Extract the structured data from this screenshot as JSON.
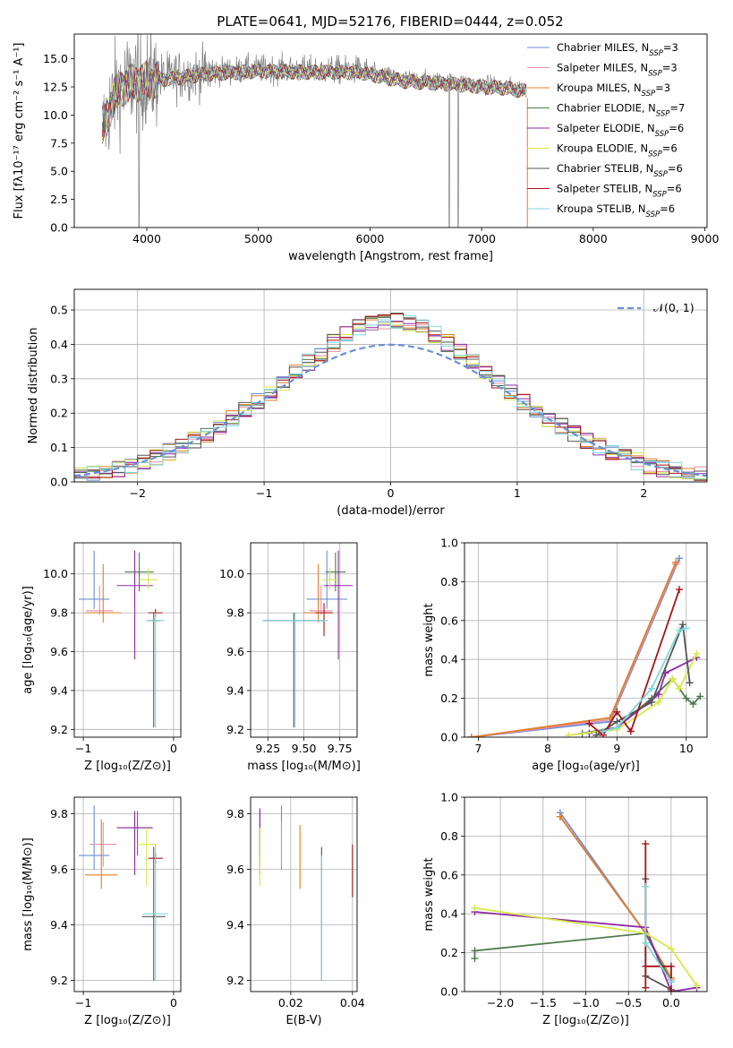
{
  "figure_title": "PLATE=0641, MJD=52176, FIBERID=0444, z=0.052",
  "colors": {
    "chabrier_miles": "#6b8fd6",
    "salpeter_miles": "#e58ea8",
    "kroupa_miles": "#e07f28",
    "chabrier_elodie": "#4e7a4e",
    "salpeter_elodie": "#8e2aa6",
    "kroupa_elodie": "#d8e84a",
    "chabrier_stelib": "#555555",
    "salpeter_stelib": "#a5141a",
    "kroupa_stelib": "#7fd6dc",
    "gauss": "#6b8fd6",
    "grid": "#b0b0b0",
    "data": "#7f7f7f"
  },
  "legend_spectrum": [
    {
      "name": "Chabrier MILES, N",
      "sub": "SSP",
      "suffix": "=3",
      "color": "#6b8fd6"
    },
    {
      "name": "Salpeter MILES, N",
      "sub": "SSP",
      "suffix": "=3",
      "color": "#e58ea8"
    },
    {
      "name": "Kroupa MILES, N",
      "sub": "SSP",
      "suffix": "=3",
      "color": "#e07f28"
    },
    {
      "name": "Chabrier ELODIE, N",
      "sub": "SSP",
      "suffix": "=7",
      "color": "#4e7a4e"
    },
    {
      "name": "Salpeter ELODIE, N",
      "sub": "SSP",
      "suffix": "=6",
      "color": "#8e2aa6"
    },
    {
      "name": "Kroupa ELODIE, N",
      "sub": "SSP",
      "suffix": "=6",
      "color": "#d8e84a"
    },
    {
      "name": "Chabrier STELIB, N",
      "sub": "SSP",
      "suffix": "=6",
      "color": "#555555"
    },
    {
      "name": "Salpeter STELIB, N",
      "sub": "SSP",
      "suffix": "=6",
      "color": "#a5141a"
    },
    {
      "name": "Kroupa STELIB, N",
      "sub": "SSP",
      "suffix": "=6",
      "color": "#7fd6dc"
    }
  ],
  "chart_data": [
    {
      "id": "spectrum",
      "type": "line",
      "xlabel": "wavelength [Angstrom, rest frame]",
      "ylabel": "Flux [fλ10⁻¹⁷ erg cm⁻² s⁻¹ A⁻¹]",
      "xlim": [
        3350,
        9020
      ],
      "ylim": [
        0,
        17.2
      ],
      "xticks": [
        4000,
        5000,
        6000,
        7000,
        8000,
        9000
      ],
      "yticks": [
        0.0,
        2.5,
        5.0,
        7.5,
        10.0,
        12.5,
        15.0
      ],
      "continuum": [
        [
          3600,
          8.6
        ],
        [
          3700,
          11.8
        ],
        [
          3800,
          12.8
        ],
        [
          3900,
          13.1
        ],
        [
          4000,
          13.2
        ],
        [
          4200,
          13.4
        ],
        [
          4500,
          13.8
        ],
        [
          5000,
          14.1
        ],
        [
          5500,
          14.0
        ],
        [
          5900,
          14.0
        ],
        [
          6300,
          13.2
        ],
        [
          6800,
          12.9
        ],
        [
          7000,
          12.7
        ],
        [
          7200,
          12.6
        ],
        [
          7400,
          12.3
        ]
      ],
      "model_end": 7400,
      "dips": [
        [
          3930,
          0
        ],
        [
          6710,
          0
        ],
        [
          6790,
          0
        ]
      ],
      "drop_line": {
        "x": 7410,
        "ymin": 0,
        "ymax": 11.5
      }
    },
    {
      "id": "residuals",
      "type": "histogram",
      "xlabel": "(data-model)/error",
      "ylabel": "Normed distribution",
      "xlim": [
        -2.5,
        2.5
      ],
      "ylim": [
        0,
        0.56
      ],
      "xticks": [
        -2,
        -1,
        0,
        1,
        2
      ],
      "yticks": [
        0.0,
        0.1,
        0.2,
        0.3,
        0.4,
        0.5
      ],
      "bin_width": 0.1,
      "gauss_label": "𝒩(0, 1)",
      "gauss": {
        "mu": 0,
        "sigma": 1
      }
    },
    {
      "id": "age_vs_Z",
      "type": "errorbar",
      "xlabel": "Z [log₁₀(Z/Z⊙)]",
      "ylabel": "age  [log₁₀(age/yr)]",
      "xlim": [
        -1.1,
        0.08
      ],
      "ylim": [
        9.16,
        10.16
      ],
      "xticks": [
        -1,
        0
      ],
      "yticks": [
        9.2,
        9.4,
        9.6,
        9.8,
        10.0
      ],
      "points": [
        {
          "color": "#6b8fd6",
          "x": -0.88,
          "xerr": 0.17,
          "y": 9.87,
          "yerr": [
            0.05,
            0.25
          ]
        },
        {
          "color": "#e58ea8",
          "x": -0.82,
          "xerr": 0.15,
          "y": 9.81,
          "yerr": [
            0.02,
            0.13
          ]
        },
        {
          "color": "#e07f28",
          "x": -0.78,
          "xerr": 0.2,
          "y": 9.8,
          "yerr": [
            0.05,
            0.25
          ]
        },
        {
          "color": "#4e7a4e",
          "x": -0.38,
          "xerr": 0.16,
          "y": 10.01,
          "yerr": [
            0.1,
            0.1
          ]
        },
        {
          "color": "#8e2aa6",
          "x": -0.43,
          "xerr": 0.2,
          "y": 9.94,
          "yerr": [
            0.38,
            0.18
          ]
        },
        {
          "color": "#d8e84a",
          "x": -0.28,
          "xerr": 0.1,
          "y": 9.97,
          "yerr": [
            0.05,
            0.06
          ]
        },
        {
          "color": "#555555",
          "x": -0.22,
          "xerr": 0.07,
          "y": 9.76,
          "yerr": [
            0.55,
            0.04
          ]
        },
        {
          "color": "#a5141a",
          "x": -0.2,
          "xerr": 0.08,
          "y": 9.8,
          "yerr": [
            0.02,
            0.02
          ]
        },
        {
          "color": "#7fd6dc",
          "x": -0.2,
          "xerr": 0.1,
          "y": 9.76,
          "yerr": [
            0.55,
            0.04
          ]
        }
      ]
    },
    {
      "id": "age_vs_mass",
      "type": "errorbar",
      "xlabel": "mass [log₁₀(M/M⊙)]",
      "ylabel": "",
      "xlim": [
        9.13,
        9.87
      ],
      "ylim": [
        9.16,
        10.16
      ],
      "xticks": [
        9.25,
        9.5,
        9.75
      ],
      "xticklabels": [
        "9.25",
        "9.50",
        "9.75"
      ],
      "yticks": [
        9.2,
        9.4,
        9.6,
        9.8,
        10.0
      ],
      "points": [
        {
          "color": "#6b8fd6",
          "x": 9.66,
          "xerr": 0.14,
          "y": 9.87,
          "yerr": [
            0.05,
            0.25
          ]
        },
        {
          "color": "#e58ea8",
          "x": 9.62,
          "xerr": 0.08,
          "y": 9.81,
          "yerr": [
            0.02,
            0.13
          ]
        },
        {
          "color": "#e07f28",
          "x": 9.6,
          "xerr": 0.1,
          "y": 9.8,
          "yerr": [
            0.05,
            0.25
          ]
        },
        {
          "color": "#4e7a4e",
          "x": 9.72,
          "xerr": 0.07,
          "y": 10.01,
          "yerr": [
            0.1,
            0.1
          ]
        },
        {
          "color": "#8e2aa6",
          "x": 9.74,
          "xerr": 0.1,
          "y": 9.94,
          "yerr": [
            0.38,
            0.18
          ]
        },
        {
          "color": "#d8e84a",
          "x": 9.68,
          "xerr": 0.05,
          "y": 9.97,
          "yerr": [
            0.05,
            0.06
          ]
        },
        {
          "color": "#555555",
          "x": 9.43,
          "xerr": 0.21,
          "y": 9.76,
          "yerr": [
            0.55,
            0.04
          ]
        },
        {
          "color": "#a5141a",
          "x": 9.64,
          "xerr": 0.06,
          "y": 9.8,
          "yerr": [
            0.12,
            0.05
          ]
        },
        {
          "color": "#7fd6dc",
          "x": 9.44,
          "xerr": 0.23,
          "y": 9.76,
          "yerr": [
            0.55,
            0.04
          ]
        }
      ]
    },
    {
      "id": "mass_weight_vs_age",
      "type": "line",
      "xlabel": "age  [log₁₀(age/yr)]",
      "ylabel": "mass weight",
      "xlim": [
        6.8,
        10.3
      ],
      "ylim": [
        0,
        1.0
      ],
      "xticks": [
        7,
        8,
        9,
        10
      ],
      "yticks": [
        0.0,
        0.2,
        0.4,
        0.6,
        0.8,
        1.0
      ],
      "series": [
        {
          "color": "#6b8fd6",
          "x": [
            6.9,
            8.9,
            9.9
          ],
          "y": [
            0.0,
            0.08,
            0.92
          ]
        },
        {
          "color": "#e58ea8",
          "x": [
            6.9,
            8.9,
            9.85
          ],
          "y": [
            0.0,
            0.09,
            0.89
          ]
        },
        {
          "color": "#e07f28",
          "x": [
            6.9,
            8.9,
            9.85
          ],
          "y": [
            0.0,
            0.1,
            0.9
          ]
        },
        {
          "color": "#4e7a4e",
          "x": [
            8.5,
            9.0,
            9.5,
            9.8,
            10.0,
            10.1,
            10.2
          ],
          "y": [
            0.02,
            0.05,
            0.2,
            0.3,
            0.2,
            0.17,
            0.21
          ]
        },
        {
          "color": "#8e2aa6",
          "x": [
            8.6,
            9.0,
            9.6,
            9.7,
            10.15
          ],
          "y": [
            0.02,
            0.05,
            0.22,
            0.33,
            0.41
          ]
        },
        {
          "color": "#d8e84a",
          "x": [
            8.3,
            9.0,
            9.6,
            9.8,
            9.9,
            10.15
          ],
          "y": [
            0.01,
            0.04,
            0.18,
            0.3,
            0.25,
            0.43
          ]
        },
        {
          "color": "#555555",
          "x": [
            8.7,
            9.0,
            9.5,
            9.95,
            10.05
          ],
          "y": [
            0.01,
            0.08,
            0.18,
            0.58,
            0.28
          ]
        },
        {
          "color": "#a5141a",
          "x": [
            8.6,
            8.8,
            9.0,
            9.2,
            9.9
          ],
          "y": [
            0.07,
            0.01,
            0.13,
            0.03,
            0.76
          ]
        },
        {
          "color": "#7fd6dc",
          "x": [
            8.8,
            9.0,
            9.5,
            9.9,
            10.0
          ],
          "y": [
            0.03,
            0.05,
            0.25,
            0.55,
            0.56
          ]
        }
      ]
    },
    {
      "id": "mass_vs_Z",
      "type": "errorbar",
      "xlabel": "Z [log₁₀(Z/Z⊙)]",
      "ylabel": "mass [log₁₀(M/M⊙)]",
      "xlim": [
        -1.1,
        0.08
      ],
      "ylim": [
        9.16,
        9.86
      ],
      "xticks": [
        -1,
        0
      ],
      "yticks": [
        9.2,
        9.4,
        9.6,
        9.8
      ],
      "points": [
        {
          "color": "#6b8fd6",
          "x": -0.88,
          "xerr": 0.17,
          "y": 9.65,
          "yerr": [
            0.05,
            0.18
          ]
        },
        {
          "color": "#e58ea8",
          "x": -0.78,
          "xerr": 0.15,
          "y": 9.69,
          "yerr": [
            0.08,
            0.08
          ]
        },
        {
          "color": "#e07f28",
          "x": -0.8,
          "xerr": 0.18,
          "y": 9.58,
          "yerr": [
            0.05,
            0.2
          ]
        },
        {
          "color": "#4e7a4e",
          "x": -0.4,
          "xerr": 0.16,
          "y": 9.75,
          "yerr": [
            0.1,
            0.06
          ]
        },
        {
          "color": "#8e2aa6",
          "x": -0.43,
          "xerr": 0.2,
          "y": 9.75,
          "yerr": [
            0.17,
            0.06
          ]
        },
        {
          "color": "#d8e84a",
          "x": -0.3,
          "xerr": 0.1,
          "y": 9.69,
          "yerr": [
            0.15,
            0.06
          ]
        },
        {
          "color": "#555555",
          "x": -0.22,
          "xerr": 0.13,
          "y": 9.43,
          "yerr": [
            0.23,
            0.25
          ]
        },
        {
          "color": "#a5141a",
          "x": -0.2,
          "xerr": 0.08,
          "y": 9.64,
          "yerr": [
            0.02,
            0.02
          ]
        },
        {
          "color": "#7fd6dc",
          "x": -0.2,
          "xerr": 0.14,
          "y": 9.44,
          "yerr": [
            0.24,
            0.25
          ]
        }
      ]
    },
    {
      "id": "mass_vs_ebv",
      "type": "errorbar",
      "xlabel": "E(B-V)",
      "ylabel": "",
      "xlim": [
        0.007,
        0.0415
      ],
      "ylim": [
        9.16,
        9.86
      ],
      "xticks": [
        0.02,
        0.04
      ],
      "yticks": [
        9.2,
        9.4,
        9.6,
        9.8
      ],
      "points": [
        {
          "color": "#6b8fd6",
          "x": 0.017,
          "xerr": 0,
          "y": 9.65,
          "yerr": [
            0.05,
            0.18
          ]
        },
        {
          "color": "#e58ea8",
          "x": 0.017,
          "xerr": 0,
          "y": 9.69,
          "yerr": [
            0.08,
            0.08
          ]
        },
        {
          "color": "#e07f28",
          "x": 0.023,
          "xerr": 0,
          "y": 9.58,
          "yerr": [
            0.05,
            0.18
          ]
        },
        {
          "color": "#4e7a4e",
          "x": 0.01,
          "xerr": 0,
          "y": 9.75,
          "yerr": [
            0.1,
            0.06
          ]
        },
        {
          "color": "#8e2aa6",
          "x": 0.01,
          "xerr": 0,
          "y": 9.75,
          "yerr": [
            0.17,
            0.07
          ]
        },
        {
          "color": "#d8e84a",
          "x": 0.01,
          "xerr": 0,
          "y": 9.69,
          "yerr": [
            0.15,
            0.06
          ]
        },
        {
          "color": "#555555",
          "x": 0.03,
          "xerr": 0,
          "y": 9.43,
          "yerr": [
            0.23,
            0.25
          ]
        },
        {
          "color": "#a5141a",
          "x": 0.04,
          "xerr": 0,
          "y": 9.6,
          "yerr": [
            0.1,
            0.09
          ]
        },
        {
          "color": "#7fd6dc",
          "x": 0.03,
          "xerr": 0,
          "y": 9.44,
          "yerr": [
            0.24,
            0.21
          ]
        }
      ]
    },
    {
      "id": "mass_weight_vs_Z",
      "type": "line",
      "xlabel": "Z [log₁₀(Z/Z⊙)]",
      "ylabel": "mass weight",
      "xlim": [
        -2.42,
        0.42
      ],
      "ylim": [
        0,
        1.0
      ],
      "xticks": [
        -2.0,
        -1.5,
        -1.0,
        -0.5,
        0.0
      ],
      "xticklabels": [
        "−2.0",
        "−1.5",
        "−1.0",
        "−0.5",
        "0.0"
      ],
      "yticks": [
        0.0,
        0.2,
        0.4,
        0.6,
        0.8,
        1.0
      ],
      "series": [
        {
          "color": "#6b8fd6",
          "x": [
            -1.3,
            -0.3,
            0.0
          ],
          "y": [
            0.92,
            0.3,
            0.05
          ]
        },
        {
          "color": "#e58ea8",
          "x": [
            -1.3,
            -0.3,
            0.0
          ],
          "y": [
            0.9,
            0.3,
            0.06
          ]
        },
        {
          "color": "#e07f28",
          "x": [
            -1.3,
            -0.3,
            0.0
          ],
          "y": [
            0.9,
            0.3,
            0.07
          ]
        },
        {
          "color": "#4e7a4e",
          "x": [
            -2.3,
            -2.3,
            -0.3,
            0.0
          ],
          "y": [
            0.17,
            0.21,
            0.3,
            0.05
          ]
        },
        {
          "color": "#8e2aa6",
          "x": [
            -2.3,
            -0.3,
            0.0,
            0.3
          ],
          "y": [
            0.41,
            0.33,
            0.0,
            0.02
          ]
        },
        {
          "color": "#d8e84a",
          "x": [
            -2.3,
            -0.3,
            0.0,
            0.3
          ],
          "y": [
            0.43,
            0.3,
            0.22,
            0.03
          ]
        },
        {
          "color": "#555555",
          "x": [
            -0.3,
            -0.3,
            0.0
          ],
          "y": [
            0.58,
            0.08,
            0.01
          ]
        },
        {
          "color": "#a5141a",
          "x": [
            -0.3,
            -0.3,
            -0.3,
            0.0,
            0.0
          ],
          "y": [
            0.76,
            0.02,
            0.13,
            0.13,
            0.0
          ]
        },
        {
          "color": "#7fd6dc",
          "x": [
            -0.3,
            -0.3,
            0.0
          ],
          "y": [
            0.54,
            0.25,
            0.05
          ]
        }
      ]
    }
  ]
}
